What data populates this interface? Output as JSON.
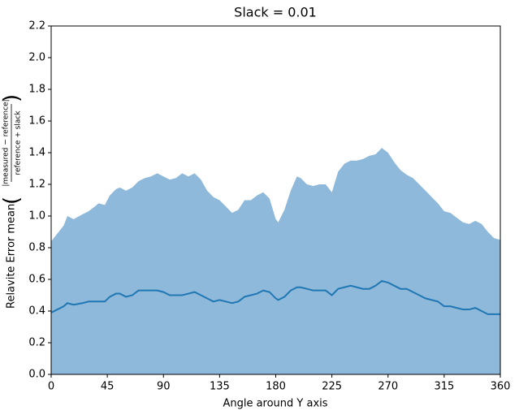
{
  "chart_data": {
    "type": "area",
    "title": "Slack = 0.01",
    "xlabel": "Angle around Y axis",
    "ylabel": {
      "text": "Relavite Error mean",
      "numerator": "|measured − reference|",
      "denominator": "reference + slack"
    },
    "x": [
      0,
      5,
      10,
      13,
      18,
      25,
      30,
      35,
      38,
      43,
      47,
      52,
      55,
      60,
      65,
      70,
      75,
      80,
      85,
      90,
      95,
      100,
      105,
      110,
      115,
      120,
      125,
      130,
      135,
      140,
      145,
      150,
      155,
      160,
      165,
      170,
      175,
      180,
      182,
      187,
      192,
      197,
      200,
      205,
      210,
      215,
      220,
      225,
      230,
      235,
      240,
      245,
      250,
      255,
      260,
      265,
      270,
      275,
      280,
      285,
      290,
      295,
      300,
      305,
      310,
      315,
      320,
      325,
      330,
      335,
      340,
      345,
      350,
      355,
      360
    ],
    "series": [
      {
        "type": "area",
        "color": "#8fb9da",
        "values": [
          0.84,
          0.89,
          0.94,
          1.0,
          0.98,
          1.01,
          1.03,
          1.06,
          1.08,
          1.07,
          1.13,
          1.17,
          1.18,
          1.16,
          1.18,
          1.22,
          1.24,
          1.25,
          1.27,
          1.25,
          1.23,
          1.24,
          1.27,
          1.25,
          1.27,
          1.23,
          1.16,
          1.12,
          1.1,
          1.06,
          1.02,
          1.04,
          1.1,
          1.1,
          1.13,
          1.15,
          1.11,
          0.98,
          0.96,
          1.04,
          1.16,
          1.25,
          1.24,
          1.2,
          1.19,
          1.2,
          1.2,
          1.15,
          1.28,
          1.33,
          1.35,
          1.35,
          1.36,
          1.38,
          1.39,
          1.43,
          1.4,
          1.34,
          1.29,
          1.26,
          1.24,
          1.2,
          1.16,
          1.12,
          1.08,
          1.03,
          1.02,
          0.99,
          0.96,
          0.95,
          0.97,
          0.95,
          0.9,
          0.86,
          0.85
        ]
      },
      {
        "type": "line",
        "color": "#1f77b4",
        "values": [
          0.39,
          0.41,
          0.43,
          0.45,
          0.44,
          0.45,
          0.46,
          0.46,
          0.46,
          0.46,
          0.49,
          0.51,
          0.51,
          0.49,
          0.5,
          0.53,
          0.53,
          0.53,
          0.53,
          0.52,
          0.5,
          0.5,
          0.5,
          0.51,
          0.52,
          0.5,
          0.48,
          0.46,
          0.47,
          0.46,
          0.45,
          0.46,
          0.49,
          0.5,
          0.51,
          0.53,
          0.52,
          0.48,
          0.47,
          0.49,
          0.53,
          0.55,
          0.55,
          0.54,
          0.53,
          0.53,
          0.53,
          0.5,
          0.54,
          0.55,
          0.56,
          0.55,
          0.54,
          0.54,
          0.56,
          0.59,
          0.58,
          0.56,
          0.54,
          0.54,
          0.52,
          0.5,
          0.48,
          0.47,
          0.46,
          0.43,
          0.43,
          0.42,
          0.41,
          0.41,
          0.42,
          0.4,
          0.38,
          0.38,
          0.38
        ]
      }
    ],
    "xlim": [
      0,
      360
    ],
    "xticks": [
      0,
      45,
      90,
      135,
      180,
      225,
      270,
      315,
      360
    ],
    "ylim": [
      0,
      2.2
    ],
    "yticks": [
      {
        "value": 0,
        "label": "0.0"
      },
      0.2,
      0.4,
      0.6,
      0.8,
      {
        "value": 1,
        "label": "1.0"
      },
      1.2,
      1.4,
      1.6,
      1.8,
      {
        "value": 2,
        "label": "2.0"
      },
      2.2
    ]
  }
}
